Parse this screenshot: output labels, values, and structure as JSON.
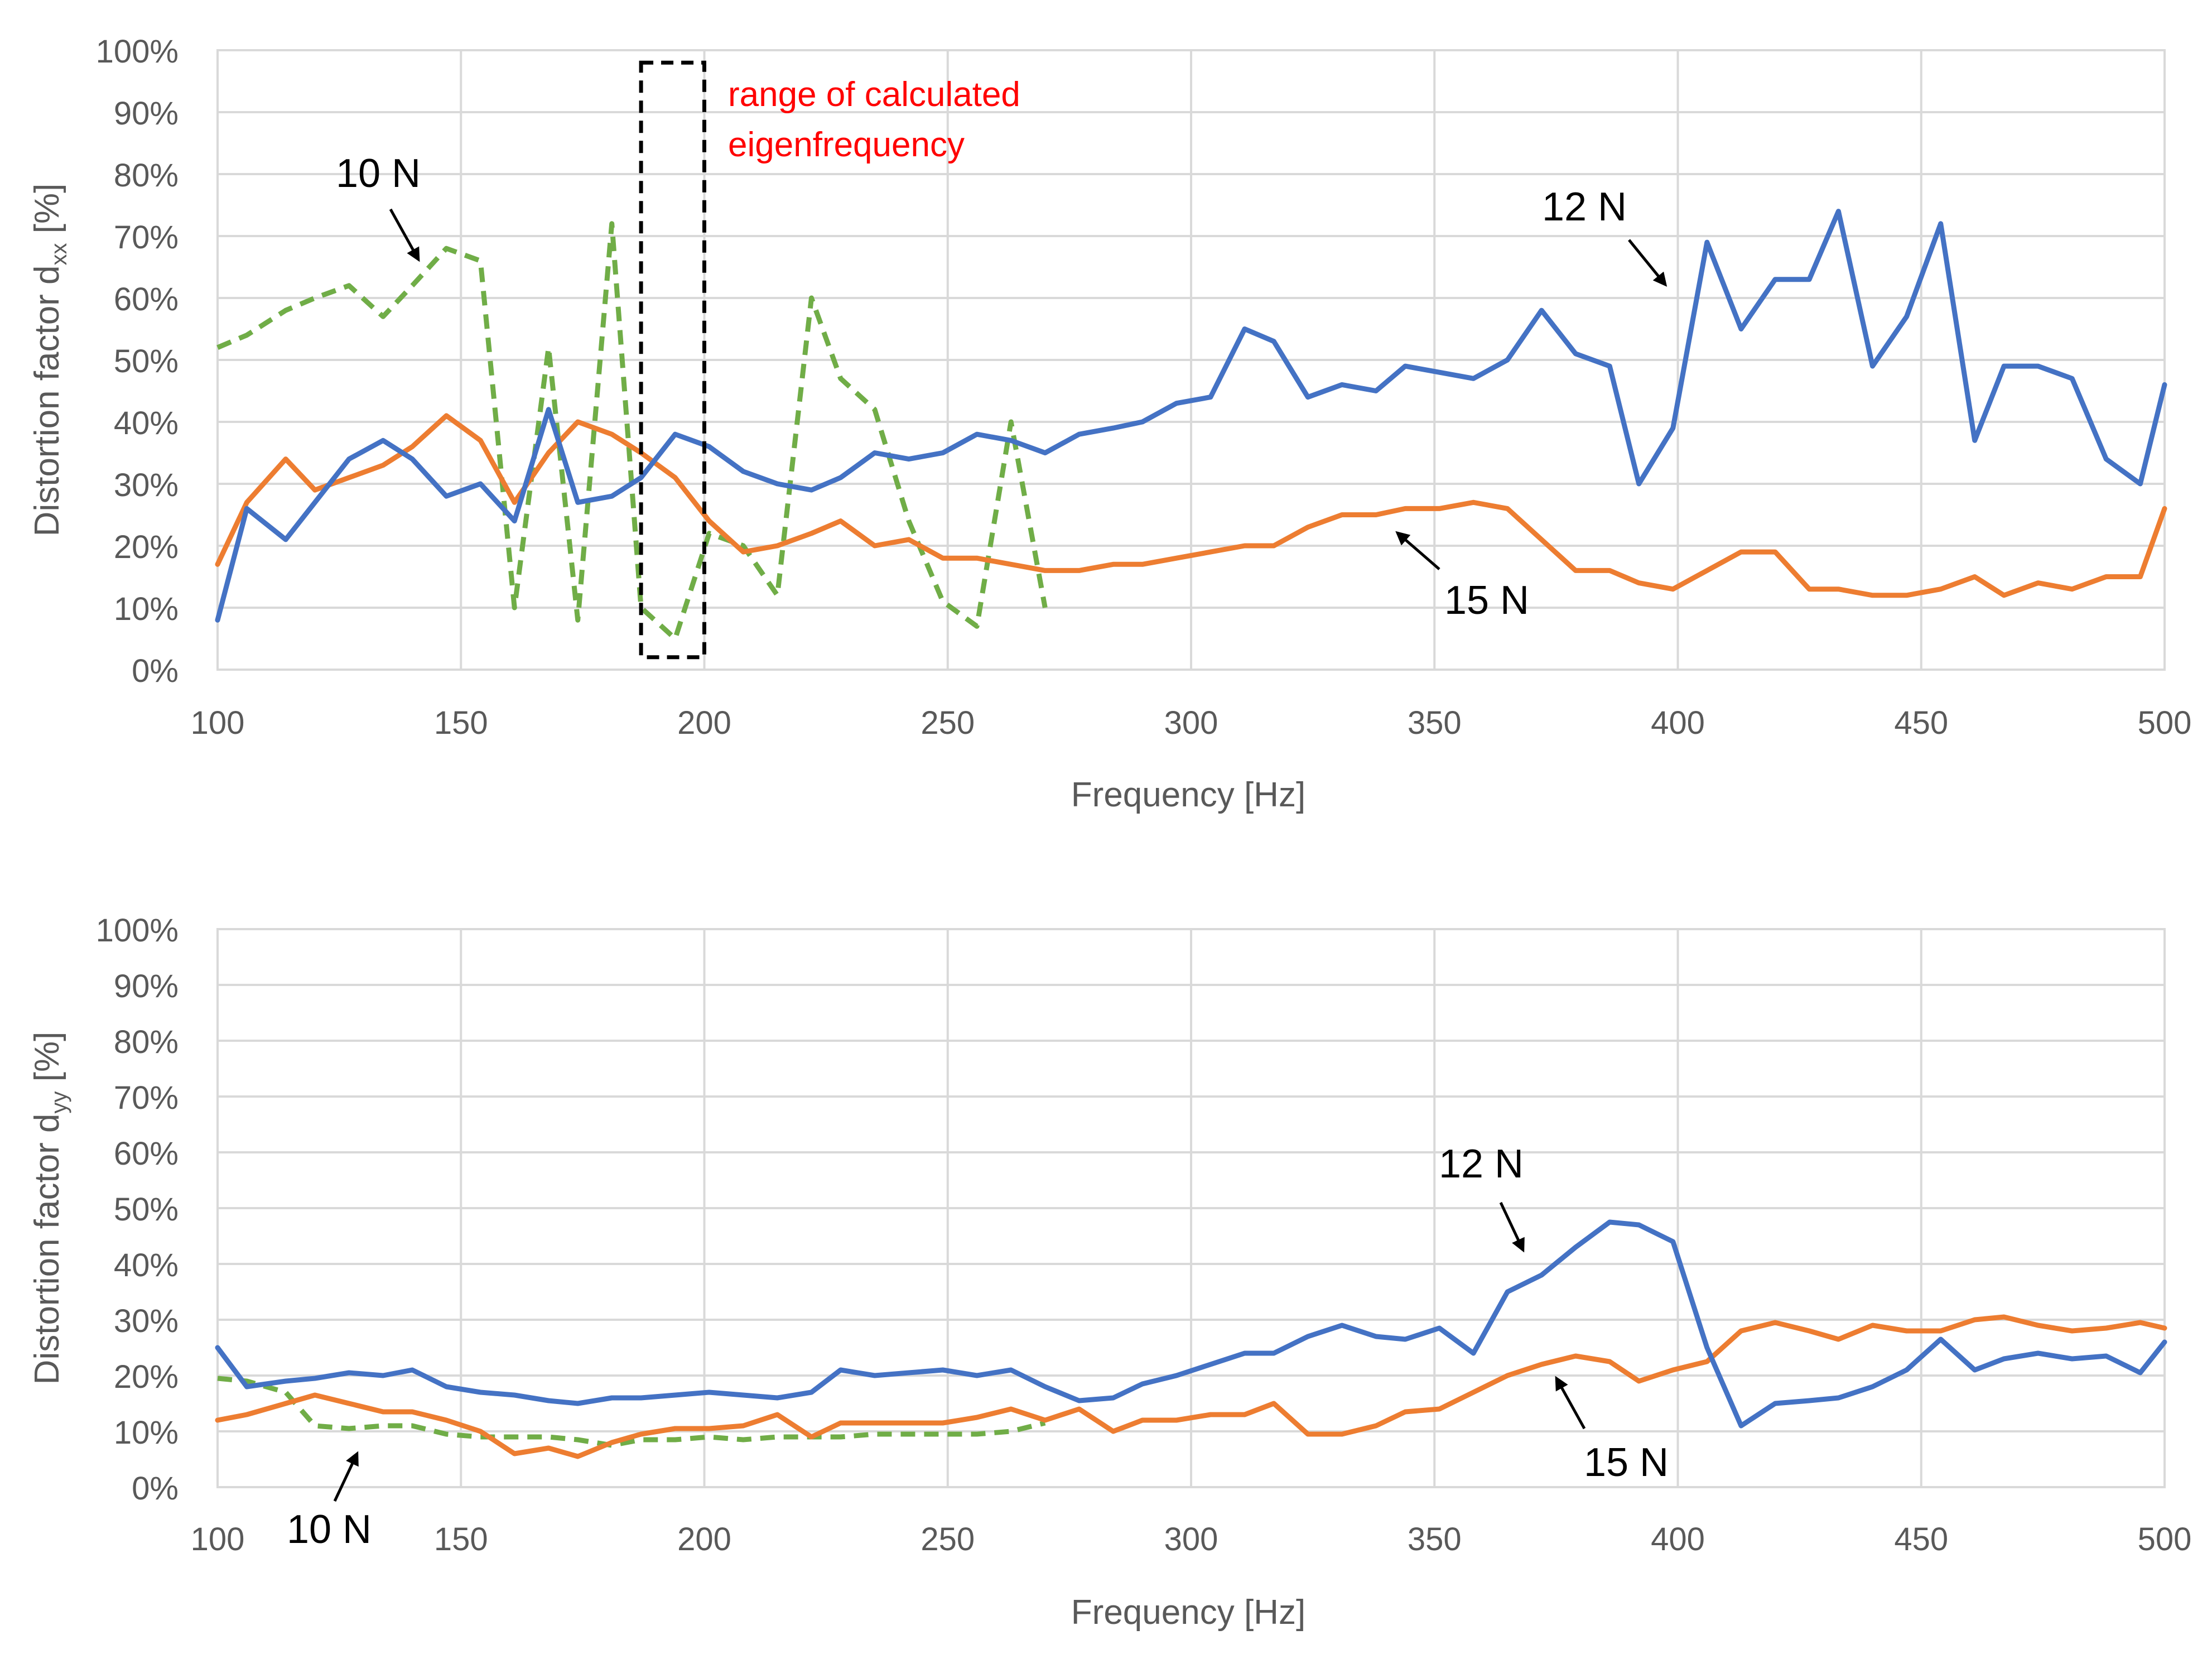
{
  "chart_data": [
    {
      "type": "line",
      "title": "",
      "xlabel": "Frequency [Hz]",
      "ylabel_main": "Distortion factor d",
      "ylabel_sub": "xx",
      "ylabel_suffix": " [%]",
      "xlim": [
        100,
        500
      ],
      "ylim": [
        0,
        100
      ],
      "x_ticks": [
        "100",
        "150",
        "200",
        "250",
        "300",
        "350",
        "400",
        "450",
        "500"
      ],
      "y_ticks": [
        "0%",
        "10%",
        "20%",
        "30%",
        "40%",
        "50%",
        "60%",
        "70%",
        "80%",
        "90%",
        "100%"
      ],
      "grid": true,
      "colors": {
        "12 N": "#4472C4",
        "15 N": "#ED7D31",
        "10 N": "#70AD47",
        "annotation": "#FF0000",
        "box": "#000000"
      },
      "series": [
        {
          "name": "12 N",
          "style": "solid",
          "x": [
            100,
            106,
            114,
            120,
            127,
            134,
            140,
            147,
            154,
            161,
            168,
            174,
            181,
            187,
            194,
            201,
            208,
            215,
            222,
            228,
            235,
            242,
            249,
            256,
            263,
            270,
            277,
            284,
            290,
            297,
            304,
            311,
            317,
            324,
            331,
            338,
            344,
            351,
            358,
            365,
            372,
            379,
            386,
            392,
            399,
            406,
            413,
            420,
            427,
            433,
            440,
            447,
            454,
            461,
            467,
            474,
            481,
            488,
            495,
            500
          ],
          "y": [
            8,
            26,
            21,
            27,
            34,
            37,
            34,
            28,
            30,
            24,
            42,
            27,
            28,
            31,
            38,
            36,
            32,
            30,
            29,
            31,
            35,
            34,
            35,
            38,
            37,
            35,
            38,
            39,
            40,
            43,
            44,
            55,
            53,
            44,
            46,
            45,
            49,
            48,
            47,
            50,
            58,
            51,
            49,
            30,
            39,
            69,
            55,
            63,
            63,
            74,
            49,
            57,
            72,
            37,
            49,
            49,
            47,
            34,
            30,
            46
          ]
        },
        {
          "name": "15 N",
          "style": "solid",
          "x": [
            100,
            106,
            114,
            120,
            127,
            134,
            140,
            147,
            154,
            161,
            168,
            174,
            181,
            187,
            194,
            201,
            208,
            215,
            222,
            228,
            235,
            242,
            249,
            256,
            263,
            270,
            277,
            284,
            290,
            297,
            304,
            311,
            317,
            324,
            331,
            338,
            344,
            351,
            358,
            365,
            372,
            379,
            386,
            392,
            399,
            406,
            413,
            420,
            427,
            433,
            440,
            447,
            454,
            461,
            467,
            474,
            481,
            488,
            495,
            500
          ],
          "y": [
            17,
            27,
            34,
            29,
            31,
            33,
            36,
            41,
            37,
            27,
            35,
            40,
            38,
            35,
            31,
            24,
            19,
            20,
            22,
            24,
            20,
            21,
            18,
            18,
            17,
            16,
            16,
            17,
            17,
            18,
            19,
            20,
            20,
            23,
            25,
            25,
            26,
            26,
            27,
            26,
            21,
            16,
            16,
            14,
            13,
            16,
            19,
            19,
            13,
            13,
            12,
            12,
            13,
            15,
            12,
            14,
            13,
            15,
            15,
            26
          ]
        },
        {
          "name": "10 N",
          "style": "dashed",
          "x": [
            100,
            106,
            114,
            120,
            127,
            134,
            140,
            147,
            154,
            161,
            168,
            174,
            181,
            187,
            194,
            201,
            208,
            215,
            222,
            228,
            235,
            242,
            249,
            256,
            263,
            270
          ],
          "y": [
            52,
            54,
            58,
            60,
            62,
            57,
            62,
            68,
            66,
            10,
            52,
            8,
            72,
            10,
            5,
            22,
            20,
            12,
            60,
            47,
            42,
            24,
            11,
            7,
            40,
            10
          ]
        }
      ],
      "annotations": [
        {
          "text": "10 N",
          "arrow_target": "10 N curve near 145 Hz"
        },
        {
          "text": "12 N",
          "arrow_target": "12 N curve near 402 Hz"
        },
        {
          "text": "15 N",
          "arrow_target": "15 N curve near 345 Hz"
        },
        {
          "text_line1": "range of calculated",
          "text_line2": "eigenfrequency",
          "box_x_range": [
            187,
            200
          ],
          "box_y_range": [
            2,
            98
          ]
        }
      ]
    },
    {
      "type": "line",
      "title": "",
      "xlabel": "Frequency [Hz]",
      "ylabel_main": "Distortion factor d",
      "ylabel_sub": "yy",
      "ylabel_suffix": " [%]",
      "xlim": [
        100,
        500
      ],
      "ylim": [
        0,
        100
      ],
      "x_ticks": [
        "100",
        "150",
        "200",
        "250",
        "300",
        "350",
        "400",
        "450",
        "500"
      ],
      "y_ticks": [
        "0%",
        "10%",
        "20%",
        "30%",
        "40%",
        "50%",
        "60%",
        "70%",
        "80%",
        "90%",
        "100%"
      ],
      "grid": true,
      "colors": {
        "12 N": "#4472C4",
        "15 N": "#ED7D31",
        "10 N": "#70AD47"
      },
      "series": [
        {
          "name": "12 N",
          "style": "solid",
          "x": [
            100,
            106,
            114,
            120,
            127,
            134,
            140,
            147,
            154,
            161,
            168,
            174,
            181,
            187,
            194,
            201,
            208,
            215,
            222,
            228,
            235,
            242,
            249,
            256,
            263,
            270,
            277,
            284,
            290,
            297,
            304,
            311,
            317,
            324,
            331,
            338,
            344,
            351,
            358,
            365,
            372,
            379,
            386,
            392,
            399,
            406,
            413,
            420,
            427,
            433,
            440,
            447,
            454,
            461,
            467,
            474,
            481,
            488,
            495,
            500
          ],
          "y": [
            25,
            18,
            19,
            19.5,
            20.5,
            20,
            21,
            18,
            17,
            16.5,
            15.5,
            15,
            16,
            16,
            16.5,
            17,
            16.5,
            16,
            17,
            21,
            20,
            20.5,
            21,
            20,
            21,
            18,
            15.5,
            16,
            18.5,
            20,
            22,
            24,
            24,
            27,
            29,
            27,
            26.5,
            28.5,
            24,
            35,
            38,
            43,
            47.5,
            47,
            44,
            25,
            11,
            15,
            15.5,
            16,
            18,
            21,
            26.5,
            21,
            23,
            24,
            23,
            23.5,
            20.5,
            26
          ]
        },
        {
          "name": "15 N",
          "style": "solid",
          "x": [
            100,
            106,
            114,
            120,
            127,
            134,
            140,
            147,
            154,
            161,
            168,
            174,
            181,
            187,
            194,
            201,
            208,
            215,
            222,
            228,
            235,
            242,
            249,
            256,
            263,
            270,
            277,
            284,
            290,
            297,
            304,
            311,
            317,
            324,
            331,
            338,
            344,
            351,
            358,
            365,
            372,
            379,
            386,
            392,
            399,
            406,
            413,
            420,
            427,
            433,
            440,
            447,
            454,
            461,
            467,
            474,
            481,
            488,
            495,
            500
          ],
          "y": [
            12,
            13,
            15,
            16.5,
            15,
            13.5,
            13.5,
            12,
            10,
            6,
            7,
            5.5,
            8,
            9.5,
            10.5,
            10.5,
            11,
            13,
            9,
            11.5,
            11.5,
            11.5,
            11.5,
            12.5,
            14,
            12,
            14,
            10,
            12,
            12,
            13,
            13,
            15,
            9.5,
            9.5,
            11,
            13.5,
            14,
            17,
            20,
            22,
            23.5,
            22.5,
            19,
            21,
            22.5,
            28,
            29.5,
            28,
            26.5,
            29,
            28,
            28,
            30,
            30.5,
            29,
            28,
            28.5,
            29.5,
            28.5
          ]
        },
        {
          "name": "10 N",
          "style": "dashed",
          "x": [
            100,
            106,
            114,
            120,
            127,
            134,
            140,
            147,
            154,
            161,
            168,
            174,
            181,
            187,
            194,
            201,
            208,
            215,
            222,
            228,
            235,
            242,
            249,
            256,
            263,
            270
          ],
          "y": [
            19.5,
            19,
            17,
            11,
            10.5,
            11,
            11,
            9.5,
            9,
            9,
            9,
            8.5,
            7.5,
            8.5,
            8.5,
            9,
            8.5,
            9,
            9,
            9,
            9.5,
            9.5,
            9.5,
            9.5,
            10,
            11.5
          ]
        }
      ],
      "annotations": [
        {
          "text": "10 N",
          "arrow_target": "10 N curve near 125 Hz"
        },
        {
          "text": "12 N",
          "arrow_target": "12 N curve near 370 Hz"
        },
        {
          "text": "15 N",
          "arrow_target": "15 N curve near 378 Hz"
        }
      ]
    }
  ]
}
